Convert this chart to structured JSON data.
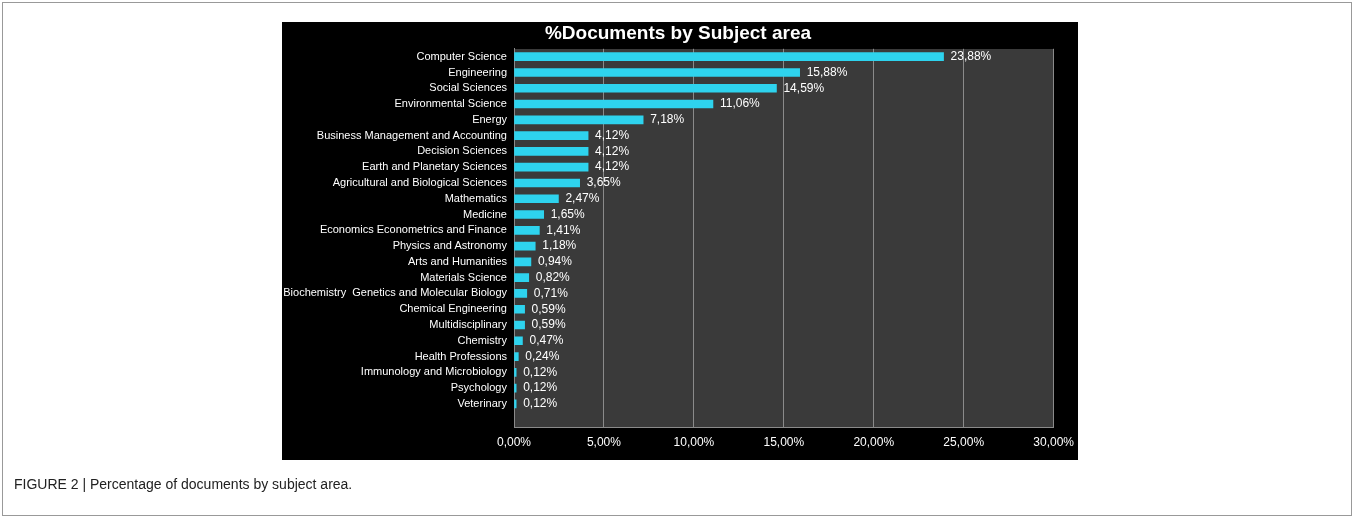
{
  "chart_data": {
    "type": "bar",
    "orientation": "horizontal",
    "title": "%Documents by Subject area",
    "categories": [
      "Computer Science",
      "Engineering",
      "Social Sciences",
      "Environmental Science",
      "Energy",
      "Business Management and Accounting",
      "Decision Sciences",
      "Earth and Planetary Sciences",
      "Agricultural and Biological Sciences",
      "Mathematics",
      "Medicine",
      "Economics Econometrics and Finance",
      "Physics and Astronomy",
      "Arts and Humanities",
      "Materials Science",
      "Biochemistry  Genetics and Molecular Biology",
      "Chemical Engineering",
      "Multidisciplinary",
      "Chemistry",
      "Health Professions",
      "Immunology and Microbiology",
      "Psychology",
      "Veterinary",
      null
    ],
    "values": [
      23.88,
      15.88,
      14.59,
      11.06,
      7.18,
      4.12,
      4.12,
      4.12,
      3.65,
      2.47,
      1.65,
      1.41,
      1.18,
      0.94,
      0.82,
      0.71,
      0.59,
      0.59,
      0.47,
      0.24,
      0.12,
      0.12,
      0.12,
      null
    ],
    "value_labels": [
      "23,88%",
      "15,88%",
      "14,59%",
      "11,06%",
      "7,18%",
      "4,12%",
      "4,12%",
      "4,12%",
      "3,65%",
      "2,47%",
      "1,65%",
      "1,41%",
      "1,18%",
      "0,94%",
      "0,82%",
      "0,71%",
      "0,59%",
      "0,59%",
      "0,47%",
      "0,24%",
      "0,12%",
      "0,12%",
      "0,12%",
      null
    ],
    "color": "#2ed3ee",
    "xlim": [
      0,
      30
    ],
    "xticks": [
      {
        "value": 0,
        "label": "0,00%"
      },
      {
        "value": 5,
        "label": "5,00%"
      },
      {
        "value": 10,
        "label": "10,00%"
      },
      {
        "value": 15,
        "label": "15,00%"
      },
      {
        "value": 20,
        "label": "20,00%"
      },
      {
        "value": 25,
        "label": "25,00%"
      },
      {
        "value": 30,
        "label": "30,00%"
      }
    ],
    "grid": "x",
    "legend": false,
    "annotations": [
      "FIGURE 2 | Percentage of documents by subject area."
    ]
  }
}
